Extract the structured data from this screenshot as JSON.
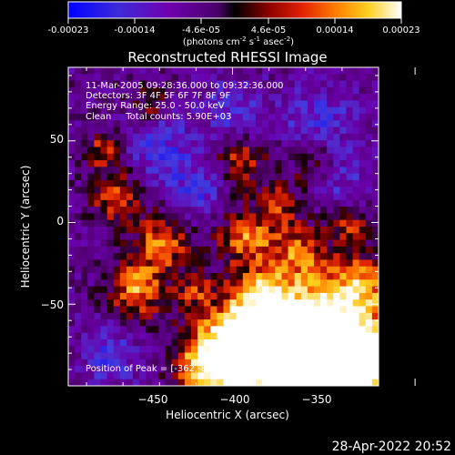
{
  "colorbar": {
    "ticks": [
      "-0.00023",
      "-0.00014",
      "-4.6e-05",
      "4.6e-05",
      "0.00014",
      "0.00023"
    ],
    "units_parts": [
      "(photons cm",
      "-2",
      " s",
      "-1",
      " asec",
      "-2",
      ")"
    ]
  },
  "chart_data": {
    "type": "heatmap",
    "title": "Reconstructed RHESSI Image",
    "xlabel": "Heliocentric X (arcsec)",
    "ylabel": "Heliocentric Y (arcsec)",
    "xlim": [
      -495,
      -410
    ],
    "ylim": [
      -100,
      95
    ],
    "xticks": [
      -450,
      -400,
      -350
    ],
    "yticks": [
      50,
      0,
      -50
    ],
    "tick_labels_x": [
      "−450",
      "−400",
      "−350"
    ],
    "tick_labels_y": [
      "50",
      "0",
      "−50"
    ],
    "colormap": "rainbow-blue-purple-red-yellow-white",
    "color_range": [
      -0.00023,
      0.00023
    ],
    "peak_position": [
      -362,
      -88
    ],
    "grid": false
  },
  "annotations": [
    "11-Mar-2005 09:28:36.000 to 09:32:36.000",
    "Detectors: 3F 4F 5F 6F 7F 8F 9F",
    "Energy Range: 25.0 - 50.0 keV",
    "Clean     Total counts: 5.90E+03"
  ],
  "peak_text": "Position of Peak = [-362,-88]",
  "timestamp": "28-Apr-2022 20:52"
}
